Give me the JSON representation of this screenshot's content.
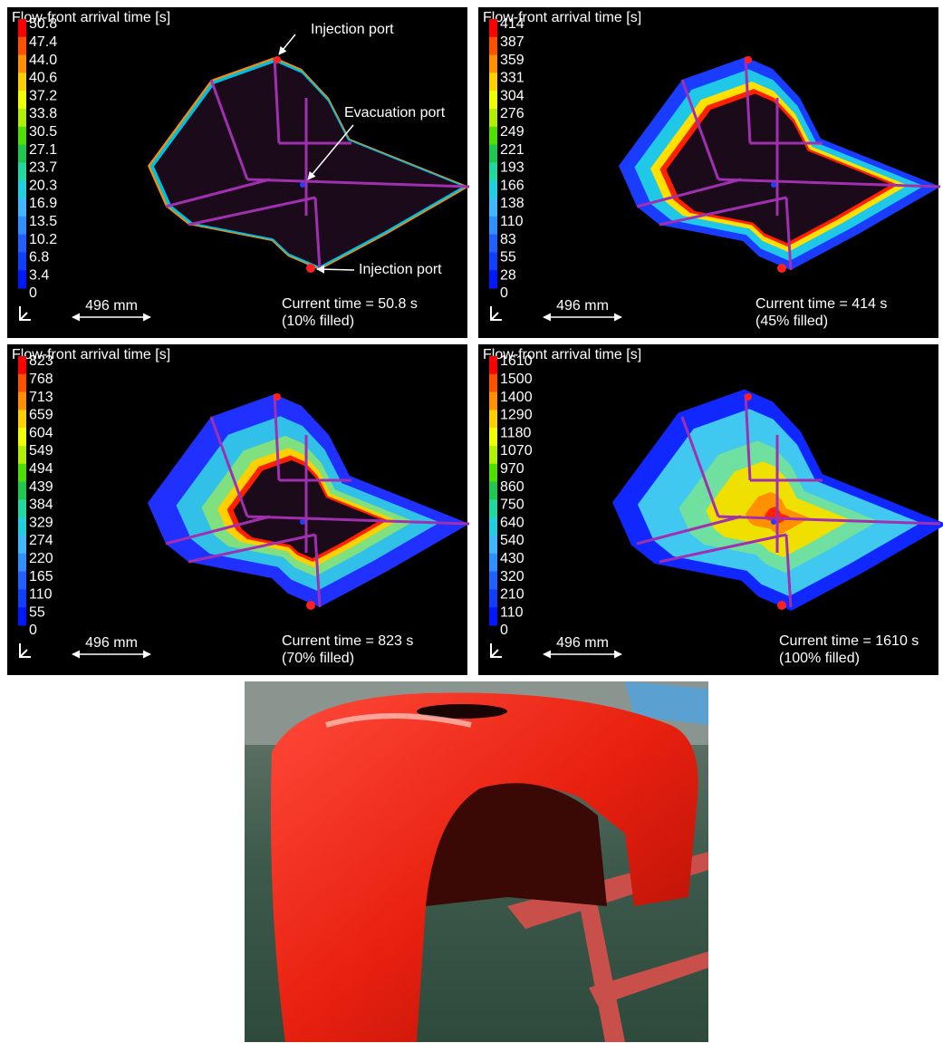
{
  "panels": [
    {
      "title": "Flow-front arrival time [s]",
      "legend_labels": [
        "50.8",
        "47.4",
        "44.0",
        "40.6",
        "37.2",
        "33.8",
        "30.5",
        "27.1",
        "23.7",
        "20.3",
        "16.9",
        "13.5",
        "10.2",
        "6.8",
        "3.4",
        "0"
      ],
      "scale_bar": "496 mm",
      "current_time": "Current time = 50.8 s",
      "fill_state": "(10% filled)",
      "annotations": [
        "Injection port",
        "Evacuation port",
        "Injection port"
      ]
    },
    {
      "title": "Flow-front arrival time [s]",
      "legend_labels": [
        "414",
        "387",
        "359",
        "331",
        "304",
        "276",
        "249",
        "221",
        "193",
        "166",
        "138",
        "110",
        "83",
        "55",
        "28",
        "0"
      ],
      "scale_bar": "496 mm",
      "current_time": "Current time = 414 s",
      "fill_state": "(45% filled)"
    },
    {
      "title": "Flow-front arrival time [s]",
      "legend_labels": [
        "823",
        "768",
        "713",
        "659",
        "604",
        "549",
        "494",
        "439",
        "384",
        "329",
        "274",
        "220",
        "165",
        "110",
        "55",
        "0"
      ],
      "scale_bar": "496 mm",
      "current_time": "Current time = 823 s",
      "fill_state": "(70% filled)"
    },
    {
      "title": "Flow-front arrival time [s]",
      "legend_labels": [
        "1610",
        "1500",
        "1400",
        "1290",
        "1180",
        "1070",
        "970",
        "860",
        "750",
        "640",
        "540",
        "430",
        "320",
        "210",
        "110",
        "0"
      ],
      "scale_bar": "496 mm",
      "current_time": "Current time = 1610 s",
      "fill_state": "(100% filled)"
    }
  ]
}
